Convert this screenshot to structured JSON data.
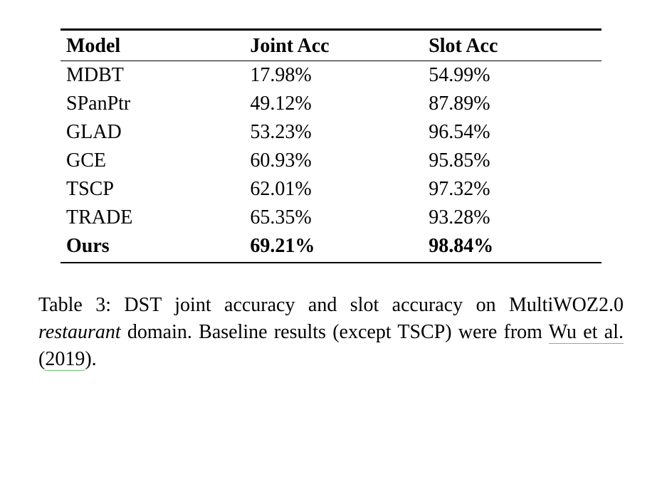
{
  "table": {
    "header": {
      "model": "Model",
      "joint": "Joint Acc",
      "slot": "Slot Acc"
    },
    "rows": [
      {
        "model": "MDBT",
        "joint": "17.98%",
        "slot": "54.99%",
        "bold": false
      },
      {
        "model": "SPanPtr",
        "joint": "49.12%",
        "slot": "87.89%",
        "bold": false
      },
      {
        "model": "GLAD",
        "joint": "53.23%",
        "slot": "96.54%",
        "bold": false
      },
      {
        "model": "GCE",
        "joint": "60.93%",
        "slot": "95.85%",
        "bold": false
      },
      {
        "model": "TSCP",
        "joint": "62.01%",
        "slot": "97.32%",
        "bold": false
      },
      {
        "model": "TRADE",
        "joint": "65.35%",
        "slot": "93.28%",
        "bold": false
      },
      {
        "model": "Ours",
        "joint": "69.21%",
        "slot": "98.84%",
        "bold": true
      }
    ]
  },
  "caption": {
    "lead": "Table 3: DST joint accuracy and slot accuracy on MultiWOZ2.0 ",
    "domain_italic": "restaurant",
    "after_domain": " domain.  Baseline results (except TSCP) were from ",
    "cite_author": "Wu et al. ",
    "open_paren": "(",
    "cite_year": "2019",
    "close_paren": ")."
  }
}
